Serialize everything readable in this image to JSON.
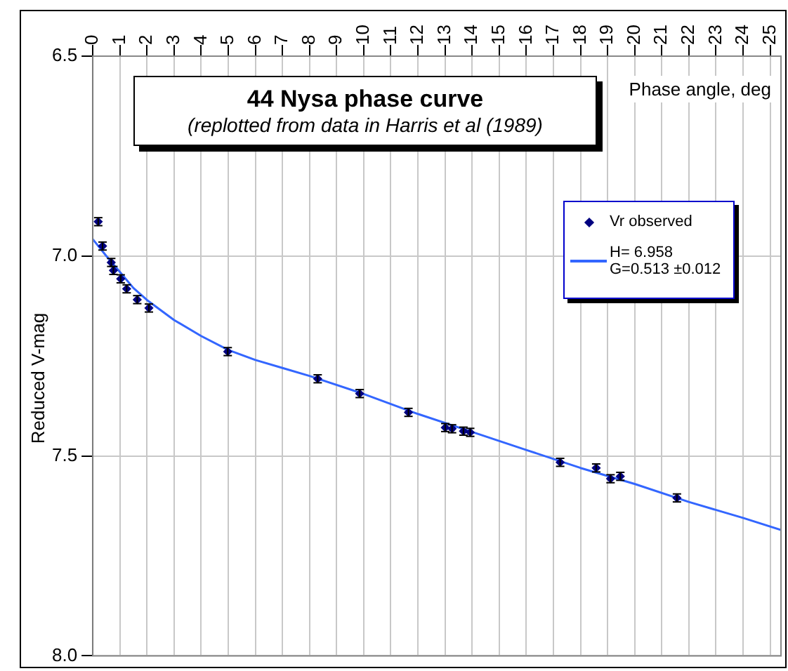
{
  "chart_data": {
    "type": "scatter",
    "title": "44 Nysa phase curve",
    "subtitle": "(replotted from data in Harris et al (1989)",
    "xlabel": "Phase angle, deg",
    "ylabel": "Reduced V-mag",
    "xlim": [
      0,
      25.4
    ],
    "xticks": [
      0,
      1,
      2,
      3,
      4,
      5,
      6,
      7,
      8,
      9,
      10,
      11,
      12,
      13,
      14,
      15,
      16,
      17,
      18,
      19,
      20,
      21,
      22,
      23,
      24,
      25
    ],
    "ylim": [
      8.0,
      6.5
    ],
    "yticks": [
      {
        "value": 6.5,
        "label": "6.5"
      },
      {
        "value": 7,
        "label": "7.0"
      },
      {
        "value": 7.5,
        "label": "7.5"
      },
      {
        "value": 8,
        "label": "8.0"
      }
    ],
    "grid": true,
    "legend": "top right",
    "marker": "diamond",
    "series": [
      {
        "name": "Vr observed",
        "color": "#000080",
        "x": [
          0.2,
          0.36,
          0.68,
          0.76,
          1.03,
          1.25,
          1.64,
          2.07,
          4.98,
          8.3,
          9.85,
          11.65,
          13.01,
          13.26,
          13.68,
          13.93,
          17.25,
          18.58,
          19.11,
          19.47,
          21.56
        ],
        "values": [
          6.914,
          6.975,
          7.016,
          7.036,
          7.057,
          7.082,
          7.109,
          7.13,
          7.239,
          7.307,
          7.344,
          7.391,
          7.429,
          7.432,
          7.438,
          7.441,
          7.516,
          7.53,
          7.557,
          7.551,
          7.605
        ],
        "errors": [
          0.01,
          0.01,
          0.01,
          0.01,
          0.01,
          0.01,
          0.01,
          0.01,
          0.01,
          0.01,
          0.01,
          0.01,
          0.01,
          0.01,
          0.01,
          0.01,
          0.01,
          0.01,
          0.01,
          0.01,
          0.01
        ]
      },
      {
        "name": "H= 6.958\nG=0.513 ±0.012",
        "type": "line",
        "color": "#3366ff",
        "marker": "none",
        "x": [
          0,
          0.5,
          1,
          1.5,
          2,
          3,
          4,
          5,
          6,
          7,
          8,
          10,
          12,
          14,
          16,
          18,
          20,
          22,
          24,
          25.4
        ],
        "values": [
          6.958,
          7.0,
          7.04,
          7.08,
          7.11,
          7.16,
          7.2,
          7.235,
          7.26,
          7.28,
          7.3,
          7.345,
          7.395,
          7.44,
          7.485,
          7.53,
          7.57,
          7.615,
          7.655,
          7.685
        ]
      }
    ]
  }
}
